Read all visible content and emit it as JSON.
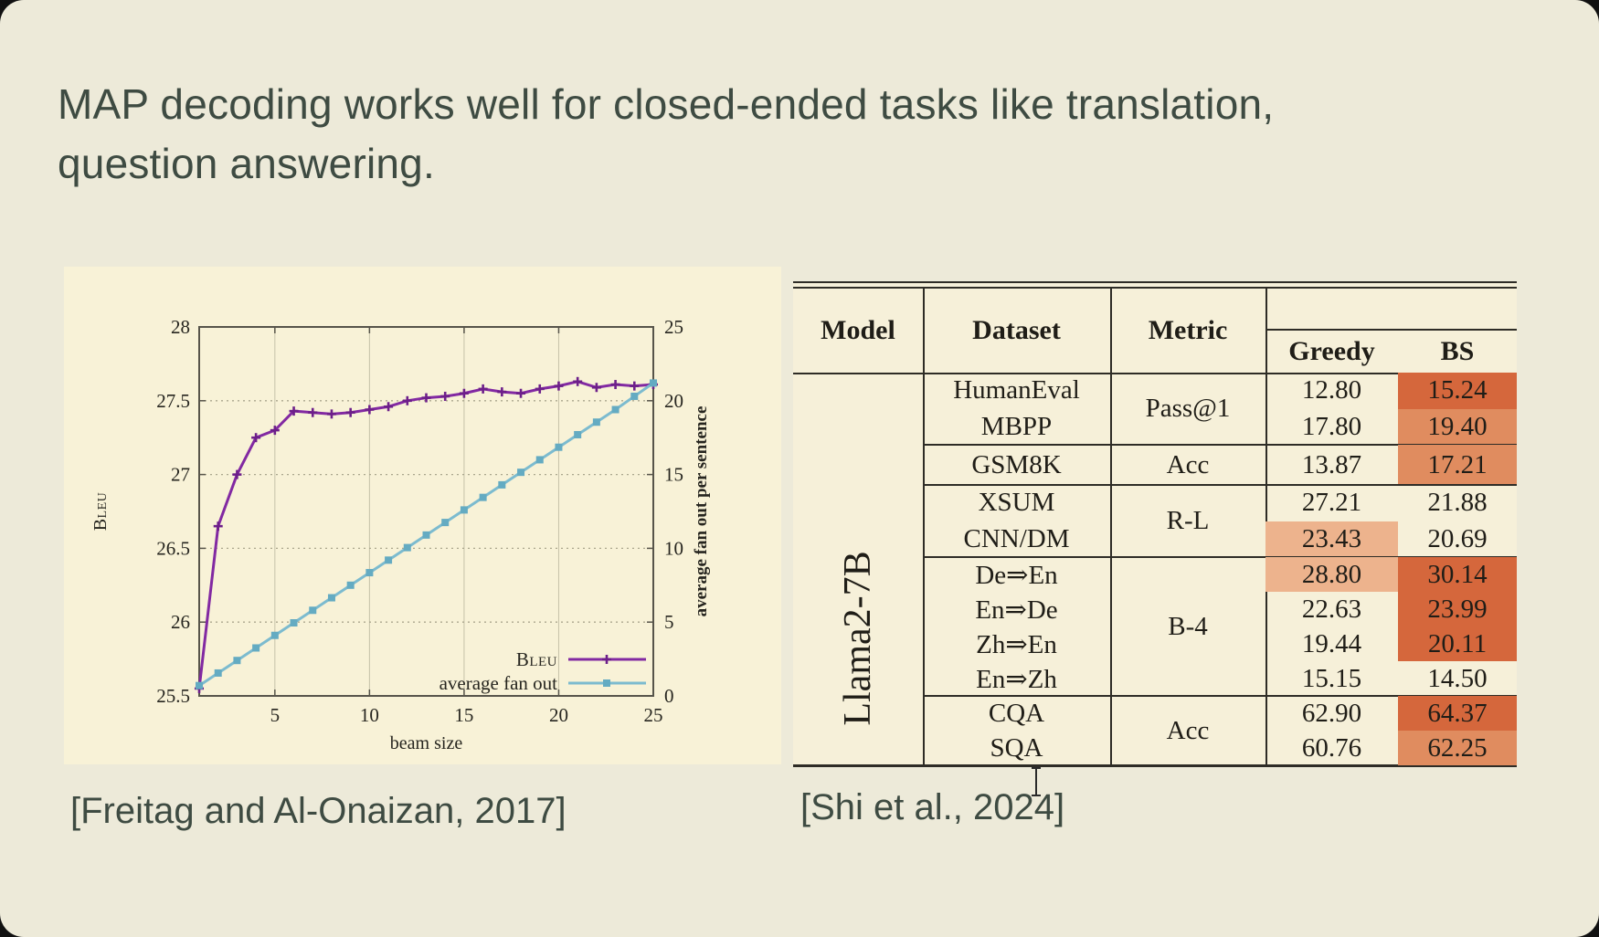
{
  "slide": {
    "title_lines": [
      "MAP decoding works well for closed-ended tasks like translation,",
      "question answering."
    ],
    "citation_left": "[Freitag and Al-Onaizan, 2017]",
    "citation_right": "[Shi et al., 2024]"
  },
  "chart_data": {
    "type": "line",
    "xlabel": "beam size",
    "ylabel_left": "Bleu",
    "ylabel_right": "average fan out per sentence",
    "xlim": [
      1,
      25
    ],
    "x_ticks": [
      5,
      10,
      15,
      20,
      25
    ],
    "ylim_left": [
      25.5,
      28
    ],
    "yticks_left": [
      25.5,
      26,
      26.5,
      27,
      27.5,
      28
    ],
    "ylim_right": [
      0,
      25
    ],
    "yticks_right": [
      0,
      5,
      10,
      15,
      20,
      25
    ],
    "grid": true,
    "legend_position": "bottom-right",
    "x": [
      1,
      2,
      3,
      4,
      5,
      6,
      7,
      8,
      9,
      10,
      11,
      12,
      13,
      14,
      15,
      16,
      17,
      18,
      19,
      20,
      21,
      22,
      23,
      24,
      25
    ],
    "series": [
      {
        "id": "bleu",
        "name": "Bleu",
        "axis": "left",
        "color": "#8229a2",
        "marker_color": "#6d1f8a",
        "marker": "plus",
        "smallcaps": true,
        "values": [
          25.55,
          26.65,
          27.0,
          27.25,
          27.3,
          27.43,
          27.42,
          27.41,
          27.42,
          27.44,
          27.46,
          27.5,
          27.52,
          27.53,
          27.55,
          27.58,
          27.56,
          27.55,
          27.58,
          27.6,
          27.63,
          27.59,
          27.61,
          27.6,
          27.61
        ]
      },
      {
        "id": "fanout",
        "name": "average fan out",
        "axis": "right",
        "color": "#7cbbcf",
        "marker_color": "#64abc2",
        "marker": "square",
        "smallcaps": false,
        "values": [
          0.7,
          1.55,
          2.4,
          3.25,
          4.1,
          4.95,
          5.8,
          6.65,
          7.5,
          8.35,
          9.2,
          10.05,
          10.9,
          11.75,
          12.6,
          13.45,
          14.3,
          15.15,
          16.0,
          16.85,
          17.7,
          18.55,
          19.4,
          20.3,
          21.2
        ]
      }
    ]
  },
  "table": {
    "headers": {
      "model": "Model",
      "dataset": "Dataset",
      "metric": "Metric",
      "greedy": "Greedy",
      "bs": "BS"
    },
    "model": "Llama2-7B",
    "highlight_colors": {
      "dark": "#d5673c",
      "medium": "#e08c5f",
      "light": "#edb38d"
    },
    "groups": [
      {
        "metric": "Pass@1",
        "rows": [
          {
            "dataset": "HumanEval",
            "greedy": "12.80",
            "bs": "15.24",
            "bs_hl": "dark"
          },
          {
            "dataset": "MBPP",
            "greedy": "17.80",
            "bs": "19.40",
            "bs_hl": "medium"
          }
        ]
      },
      {
        "metric": "Acc",
        "rows": [
          {
            "dataset": "GSM8K",
            "greedy": "13.87",
            "bs": "17.21",
            "bs_hl": "medium"
          }
        ]
      },
      {
        "metric": "R-L",
        "rows": [
          {
            "dataset": "XSUM",
            "greedy": "27.21",
            "bs": "21.88"
          },
          {
            "dataset": "CNN/DM",
            "greedy": "23.43",
            "greedy_hl": "light",
            "bs": "20.69"
          }
        ]
      },
      {
        "metric": "B-4",
        "rows": [
          {
            "dataset": "De⇒En",
            "greedy": "28.80",
            "greedy_hl": "light",
            "bs": "30.14",
            "bs_hl": "dark"
          },
          {
            "dataset": "En⇒De",
            "greedy": "22.63",
            "bs": "23.99",
            "bs_hl": "dark"
          },
          {
            "dataset": "Zh⇒En",
            "greedy": "19.44",
            "bs": "20.11",
            "bs_hl": "dark"
          },
          {
            "dataset": "En⇒Zh",
            "greedy": "15.15",
            "bs": "14.50"
          }
        ]
      },
      {
        "metric": "Acc",
        "rows": [
          {
            "dataset": "CQA",
            "greedy": "62.90",
            "bs": "64.37",
            "bs_hl": "dark"
          },
          {
            "dataset": "SQA",
            "greedy": "60.76",
            "bs": "62.25",
            "bs_hl": "medium"
          }
        ]
      }
    ]
  }
}
